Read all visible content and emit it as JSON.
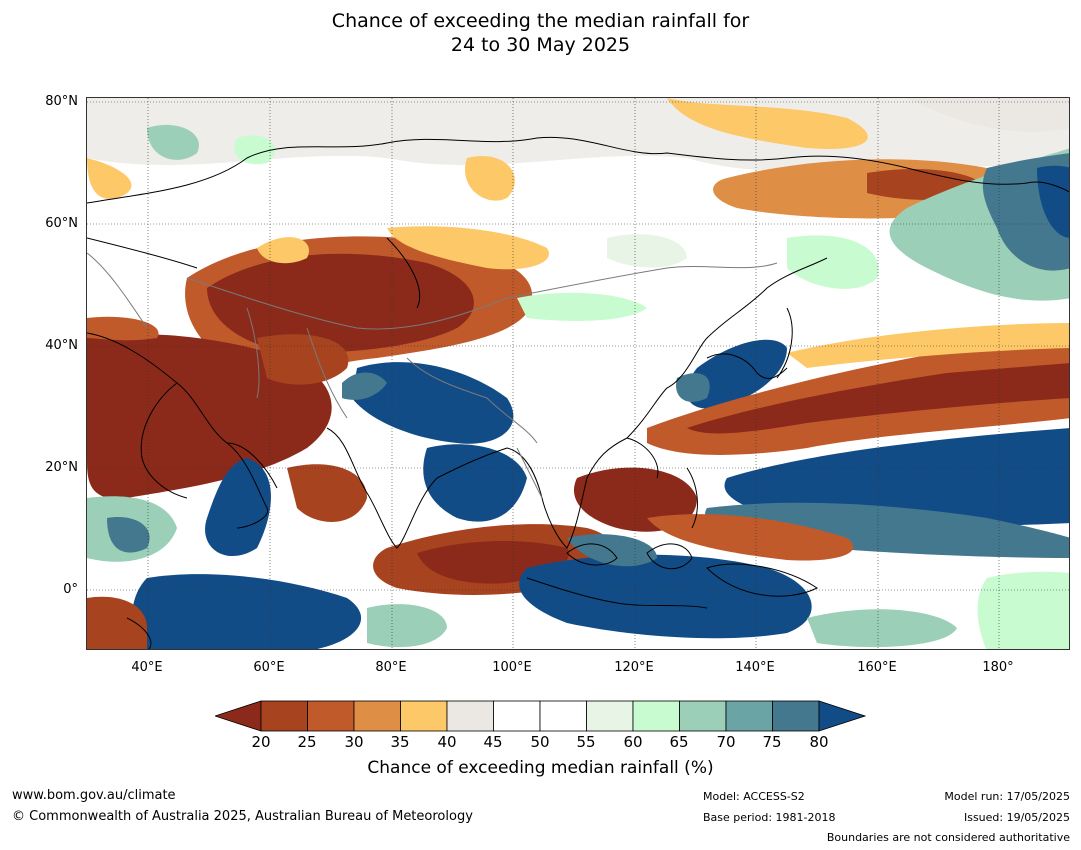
{
  "title": {
    "line1": "Chance of exceeding the median rainfall for",
    "line2": "24 to 30 May 2025"
  },
  "map": {
    "lat_labels": [
      "80°N",
      "60°N",
      "40°N",
      "20°N",
      "0°"
    ],
    "lon_labels": [
      "40°E",
      "60°E",
      "80°E",
      "100°E",
      "120°E",
      "140°E",
      "160°E",
      "180°"
    ],
    "extent": {
      "lon": [
        30,
        192
      ],
      "lat": [
        -10,
        81
      ]
    }
  },
  "colorbar": {
    "title": "Chance of exceeding median rainfall (%)",
    "ticks": [
      "20",
      "25",
      "30",
      "35",
      "40",
      "45",
      "50",
      "55",
      "60",
      "65",
      "70",
      "75",
      "80"
    ],
    "colors": [
      "#8b2a1a",
      "#a8431f",
      "#c05a2b",
      "#de8e45",
      "#fdc868",
      "#ebe8e3",
      "#ffffff",
      "#ffffff",
      "#e8f4e6",
      "#c8fcd0",
      "#9bcfb8",
      "#6aa4a4",
      "#44788f",
      "#124c86"
    ]
  },
  "footer": {
    "website": "www.bom.gov.au/climate",
    "copyright": "© Commonwealth of Australia 2025, Australian Bureau of Meteorology",
    "model": "Model: ACCESS-S2",
    "base_period": "Base period: 1981-2018",
    "model_run": "Model run: 17/05/2025",
    "issued": "Issued: 19/05/2025",
    "disclaimer": "Boundaries are not considered authoritative"
  }
}
